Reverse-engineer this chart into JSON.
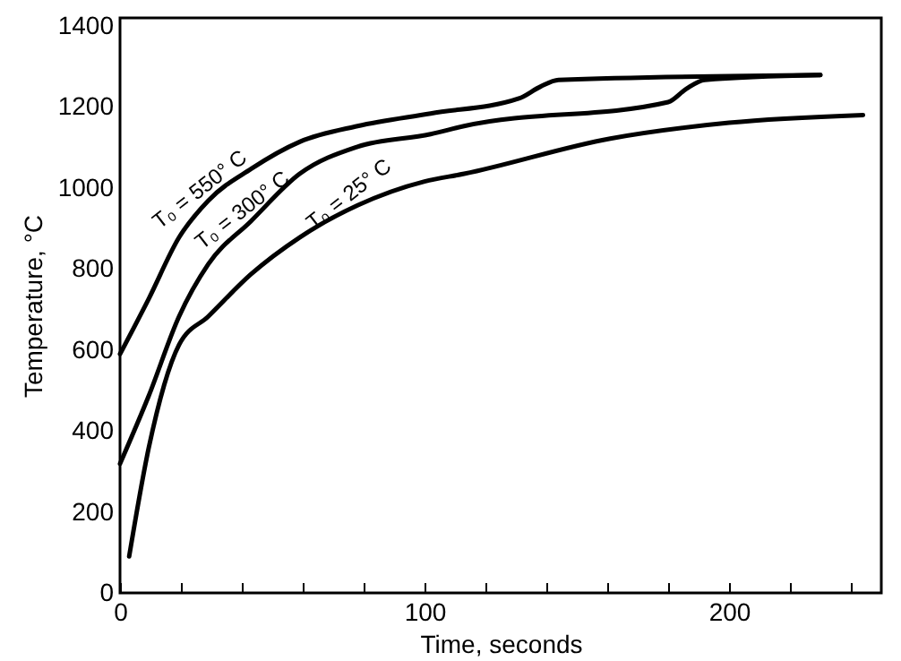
{
  "chart_data": {
    "type": "line",
    "xlabel": "Time, seconds",
    "ylabel": "Temperature, °C",
    "xlim": [
      0,
      250
    ],
    "ylim": [
      0,
      1420
    ],
    "xticks": [
      0,
      {
        "value": 20,
        "label": null
      },
      {
        "value": 40,
        "label": null
      },
      {
        "value": 60,
        "label": null
      },
      {
        "value": 80,
        "label": null
      },
      100,
      {
        "value": 120,
        "label": null
      },
      {
        "value": 140,
        "label": null
      },
      {
        "value": 160,
        "label": null
      },
      {
        "value": 180,
        "label": null
      },
      200,
      {
        "value": 220,
        "label": null
      },
      {
        "value": 240,
        "label": null
      }
    ],
    "yticks": [
      0,
      200,
      400,
      600,
      800,
      1000,
      1200,
      1400
    ],
    "grid": false,
    "marker": "none",
    "line_style": "solid",
    "series": [
      {
        "name": "T₀ = 550° C",
        "color": "#000000",
        "x": [
          0,
          9.4,
          19.4,
          29,
          43,
          59,
          78,
          102,
          131,
          138,
          144,
          230
        ],
        "values": [
          590,
          726,
          878,
          969,
          1047,
          1114,
          1153,
          1184,
          1221,
          1250,
          1267,
          1279
        ]
      },
      {
        "name": "T₀ = 300° C",
        "color": "#000000",
        "x": [
          0,
          9.4,
          19.4,
          29,
          43,
          59,
          78,
          102,
          113,
          180,
          186,
          192,
          230
        ],
        "values": [
          319,
          486,
          683,
          812,
          918,
          1035,
          1102,
          1133,
          1153,
          1212,
          1245,
          1267,
          1279
        ]
      },
      {
        "name": "T₀ = 25° C",
        "color": "#000000",
        "x": [
          3,
          9.4,
          19.4,
          29,
          43,
          59,
          78,
          100,
          113,
          161,
          200,
          244
        ],
        "values": [
          90,
          357,
          613,
          683,
          787,
          878,
          957,
          1016,
          1035,
          1122,
          1161,
          1180
        ]
      }
    ]
  }
}
